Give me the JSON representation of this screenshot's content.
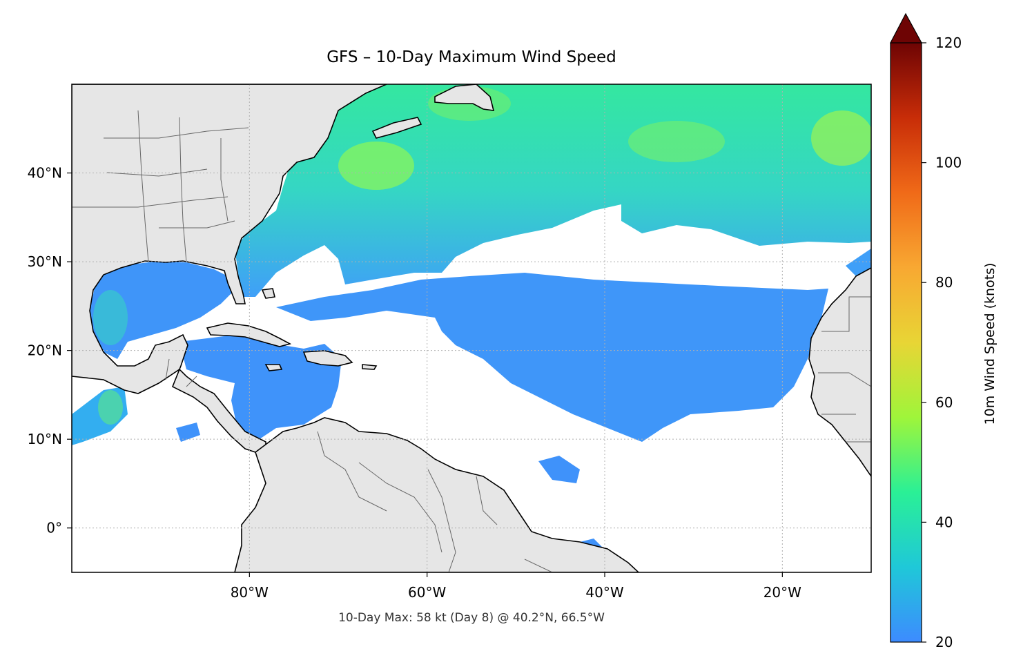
{
  "title": "GFS – 10-Day Maximum Wind Speed",
  "footnote": "10-Day Max: 58 kt (Day 8) @ 40.2°N, 66.5°W",
  "map": {
    "projection": "PlateCarree",
    "lon_range": [
      -100,
      -10
    ],
    "lat_range": [
      -5,
      50
    ],
    "lon_ticks": [
      {
        "value": -80,
        "label": "80°W"
      },
      {
        "value": -60,
        "label": "60°W"
      },
      {
        "value": -40,
        "label": "40°W"
      },
      {
        "value": -20,
        "label": "20°W"
      }
    ],
    "lat_ticks": [
      {
        "value": 0,
        "label": "0°"
      },
      {
        "value": 10,
        "label": "10°N"
      },
      {
        "value": 20,
        "label": "20°N"
      },
      {
        "value": 30,
        "label": "30°N"
      },
      {
        "value": 40,
        "label": "40°N"
      }
    ],
    "gridlines": true,
    "land_color": "#e6e6e6",
    "ocean_color": "#ffffff",
    "max_point": {
      "lat": 40.2,
      "lon": -66.5,
      "value": 58,
      "day": 8
    }
  },
  "colorbar": {
    "label": "10m Wind Speed (knots)",
    "min": 20,
    "max": 120,
    "extend": "max",
    "ticks": [
      20,
      40,
      60,
      80,
      100,
      120
    ],
    "colors": [
      "#3d8bff",
      "#1fc8d8",
      "#2af096",
      "#9ff53a",
      "#e8d535",
      "#f8a832",
      "#f06a18",
      "#c82d08",
      "#6e0404"
    ]
  }
}
